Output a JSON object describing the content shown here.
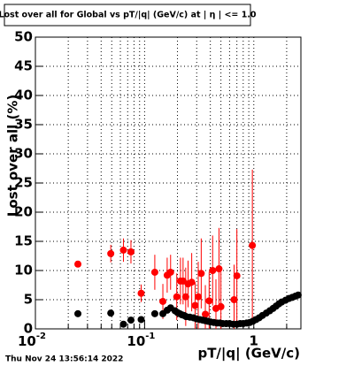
{
  "chart_data": {
    "type": "scatter",
    "title": "Lost over all for Global vs pT/|q| (GeV/c) at | η | <= 1.0",
    "x_label": "pT/|q| (GeV/c)",
    "y_label": "Lost over all (%)",
    "footer": "Thu Nov 24 13:56:14 2022",
    "xscale": "log",
    "xlim": [
      0.01,
      2.7
    ],
    "ylim": [
      0,
      50
    ],
    "xticks": [
      {
        "value": 0.01,
        "label": "10",
        "exponent": "-2"
      },
      {
        "value": 0.1,
        "label": "10",
        "exponent": "-1"
      },
      1
    ],
    "xminorticks": [
      0.02,
      0.03,
      0.04,
      0.05,
      0.06,
      0.07,
      0.08,
      0.09,
      0.2,
      0.3,
      0.4,
      0.5,
      0.6,
      0.7,
      0.8,
      0.9,
      2
    ],
    "yticks": [
      0,
      5,
      10,
      15,
      20,
      25,
      30,
      35,
      40,
      45,
      50
    ],
    "grid": true,
    "series": [
      {
        "color": "#ff0000",
        "x": [
          0.0245,
          0.049,
          0.064,
          0.075,
          0.093,
          0.124,
          0.147,
          0.161,
          0.173,
          0.197,
          0.213,
          0.225,
          0.238,
          0.25,
          0.27,
          0.29,
          0.31,
          0.33,
          0.36,
          0.39,
          0.42,
          0.45,
          0.48,
          0.5,
          0.66,
          0.7,
          0.97
        ],
        "values": [
          11.1,
          12.9,
          13.5,
          13.2,
          6.1,
          9.7,
          4.7,
          9.2,
          9.7,
          5.5,
          8.2,
          8.2,
          5.5,
          7.7,
          8.0,
          4.0,
          5.5,
          9.5,
          2.5,
          4.8,
          10.0,
          3.5,
          10.3,
          3.8,
          5.0,
          9.1,
          14.3
        ],
        "errors": [
          0.5,
          1.5,
          2,
          2,
          1.5,
          3,
          3,
          3,
          3,
          4,
          4,
          4,
          5,
          4,
          5,
          4,
          6,
          6,
          5,
          5,
          6,
          5,
          7,
          6,
          6,
          8,
          13
        ]
      },
      {
        "color": "#000000",
        "x": [
          0.0245,
          0.049,
          0.064,
          0.075,
          0.093,
          0.124,
          0.147,
          0.161,
          0.173,
          0.19,
          0.2,
          0.21,
          0.22,
          0.23,
          0.24,
          0.26,
          0.28,
          0.3,
          0.32,
          0.34,
          0.36,
          0.38,
          0.4,
          0.43,
          0.46,
          0.49,
          0.52,
          0.56,
          0.6,
          0.65,
          0.7,
          0.75,
          0.8,
          0.86,
          0.92,
          0.98,
          1.05,
          1.12,
          1.2,
          1.3,
          1.4,
          1.5,
          1.6,
          1.7,
          1.8,
          1.95,
          2.1,
          2.25,
          2.4,
          2.55
        ],
        "values": [
          2.6,
          2.7,
          0.8,
          1.5,
          1.6,
          2.6,
          2.6,
          3.2,
          3.6,
          3.1,
          2.8,
          2.6,
          2.4,
          2.3,
          2.1,
          2.0,
          1.9,
          1.7,
          1.6,
          1.5,
          1.4,
          1.3,
          1.2,
          1.1,
          1.0,
          1.0,
          0.9,
          0.9,
          0.9,
          0.8,
          0.8,
          0.9,
          0.9,
          1.0,
          1.1,
          1.3,
          1.6,
          1.9,
          2.3,
          2.7,
          3.1,
          3.5,
          3.9,
          4.3,
          4.6,
          4.9,
          5.2,
          5.4,
          5.6,
          5.8
        ]
      }
    ]
  }
}
